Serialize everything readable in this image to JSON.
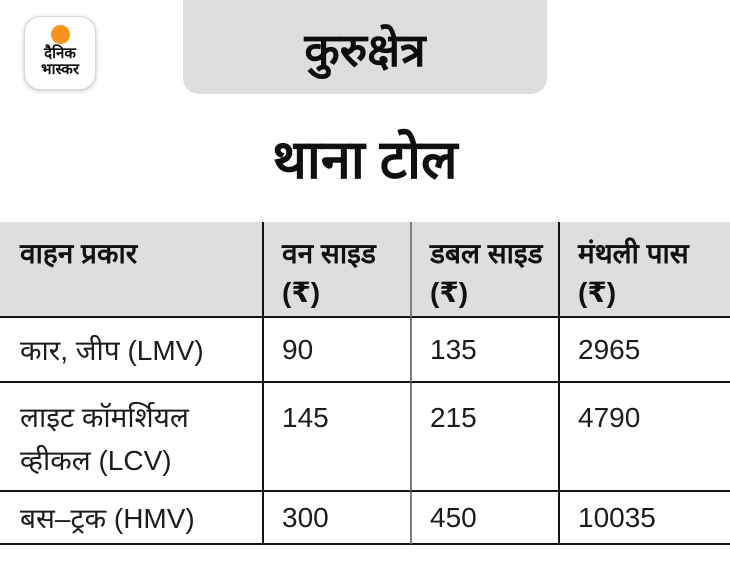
{
  "brand": {
    "logo_line1": "दैनिक",
    "logo_line2": "भास्कर"
  },
  "header": {
    "region": "कुरुक्षेत्र",
    "title": "थाना टोल"
  },
  "table": {
    "columns": [
      "वाहन प्रकार",
      "वन साइड (₹)",
      "डबल साइड (₹)",
      "मंथली पास (₹)"
    ],
    "rows": [
      {
        "vehicle": "कार, जीप (LMV)",
        "one_side": "90",
        "double_side": "135",
        "monthly_pass": "2965"
      },
      {
        "vehicle": "लाइट कॉमर्शियल व्हीकल (LCV)",
        "one_side": "145",
        "double_side": "215",
        "monthly_pass": "4790"
      },
      {
        "vehicle": "बस–ट्रक (HMV)",
        "one_side": "300",
        "double_side": "450",
        "monthly_pass": "10035"
      }
    ]
  },
  "chart_data": {
    "type": "table",
    "title": "थाना टोल",
    "subtitle": "कुरुक्षेत्र",
    "columns": [
      "वाहन प्रकार",
      "वन साइड (₹)",
      "डबल साइड (₹)",
      "मंथली पास (₹)"
    ],
    "rows": [
      [
        "कार, जीप (LMV)",
        90,
        135,
        2965
      ],
      [
        "लाइट कॉमर्शियल व्हीकल (LCV)",
        145,
        215,
        4790
      ],
      [
        "बस–ट्रक (HMV)",
        300,
        450,
        10035
      ]
    ]
  },
  "colors": {
    "accent_orange": "#f7941e",
    "panel_gray": "#dcdee0",
    "line_black": "#141414",
    "divider_gray": "#808080",
    "text_black": "#101010"
  }
}
